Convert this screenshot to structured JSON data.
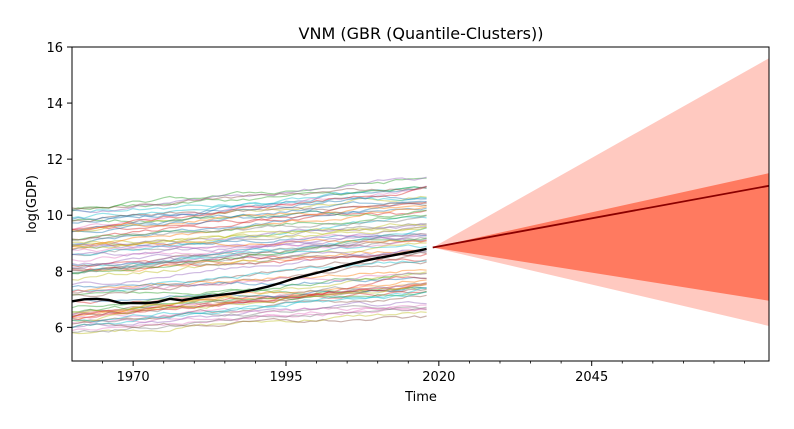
{
  "chart_data": {
    "type": "line",
    "title": "VNM (GBR (Quantile-Clusters))",
    "xlabel": "Time",
    "ylabel": "log(GDP)",
    "xlim": [
      1960,
      2074
    ],
    "ylim": [
      4.8,
      16
    ],
    "x_ticks": [
      "1970",
      "1995",
      "2020",
      "2045"
    ],
    "x_tick_values": [
      1970,
      1995,
      2020,
      2045
    ],
    "y_ticks": [
      "6",
      "8",
      "10",
      "12",
      "14",
      "16"
    ],
    "y_tick_values": [
      6,
      8,
      10,
      12,
      14,
      16
    ],
    "grid": false,
    "background_series": {
      "count": 80,
      "x_range": [
        1960,
        2018
      ],
      "start_range": [
        5.8,
        10.3
      ],
      "end_range": [
        6.5,
        11.3
      ],
      "alpha": 0.45,
      "palette": [
        "#1f77b4",
        "#ff7f0e",
        "#2ca02c",
        "#d62728",
        "#9467bd",
        "#8c564b",
        "#e377c2",
        "#7f7f7f",
        "#bcbd22",
        "#17becf"
      ]
    },
    "history": {
      "name": "VNM",
      "color": "#000000",
      "x": [
        1960,
        1962,
        1964,
        1966,
        1968,
        1970,
        1972,
        1974,
        1976,
        1978,
        1980,
        1982,
        1984,
        1986,
        1988,
        1990,
        1992,
        1994,
        1996,
        1998,
        2000,
        2002,
        2004,
        2006,
        2008,
        2010,
        2012,
        2014,
        2016,
        2018
      ],
      "y": [
        6.93,
        7.0,
        7.02,
        6.98,
        6.86,
        6.87,
        6.86,
        6.9,
        7.02,
        6.96,
        7.04,
        7.1,
        7.15,
        7.2,
        7.27,
        7.35,
        7.45,
        7.58,
        7.72,
        7.83,
        7.94,
        8.05,
        8.17,
        8.28,
        8.38,
        8.47,
        8.55,
        8.63,
        8.71,
        8.8
      ]
    },
    "forecast": {
      "x": [
        2019,
        2074
      ],
      "median": [
        8.85,
        11.05
      ],
      "inner_band": {
        "lower": [
          8.85,
          6.95
        ],
        "upper": [
          8.85,
          11.5
        ],
        "color": "#ff7a60"
      },
      "outer_band": {
        "lower": [
          8.85,
          6.05
        ],
        "upper": [
          8.85,
          15.6
        ],
        "color": "#ffc9c0"
      },
      "median_color": "#8b0000"
    }
  }
}
